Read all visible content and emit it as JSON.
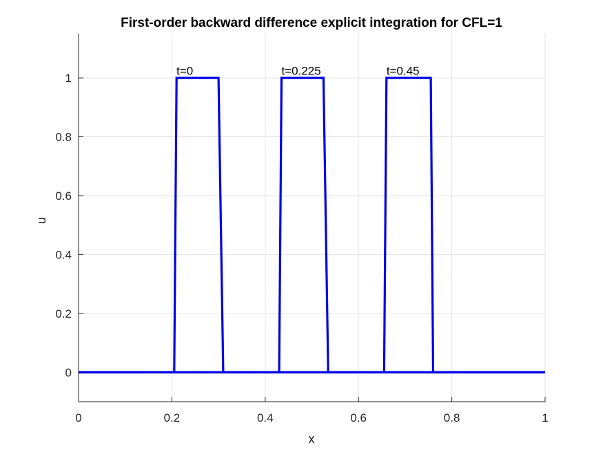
{
  "chart_data": {
    "type": "line",
    "title": "First-order backward difference explicit integration for  CFL=1",
    "xlabel": "x",
    "ylabel": "u",
    "xlim": [
      0,
      1
    ],
    "ylim": [
      -0.1,
      1.15
    ],
    "xticks": [
      0,
      0.2,
      0.4,
      0.6,
      0.8,
      1
    ],
    "yticks": [
      0,
      0.2,
      0.4,
      0.6,
      0.8,
      1
    ],
    "xtick_labels": [
      "0",
      "0.2",
      "0.4",
      "0.6",
      "0.8",
      "1"
    ],
    "ytick_labels": [
      "0",
      "0.2",
      "0.4",
      "0.6",
      "0.8",
      "1"
    ],
    "grid": true,
    "line_color": "#0000e6",
    "series": [
      {
        "x": [
          0,
          0.205,
          0.21,
          0.3,
          0.31,
          1
        ],
        "y": [
          0,
          0,
          1,
          1,
          0,
          0
        ]
      },
      {
        "x": [
          0,
          0.43,
          0.435,
          0.525,
          0.535,
          1
        ],
        "y": [
          0,
          0,
          1,
          1,
          0,
          0
        ]
      },
      {
        "x": [
          0,
          0.655,
          0.66,
          0.755,
          0.76,
          1
        ],
        "y": [
          0,
          0,
          1,
          1,
          0,
          0
        ]
      }
    ],
    "annotations": [
      {
        "text": "t=0",
        "x": 0.21,
        "y": 1.02
      },
      {
        "text": "t=0.225",
        "x": 0.435,
        "y": 1.02
      },
      {
        "text": "t=0.45",
        "x": 0.66,
        "y": 1.02
      }
    ]
  }
}
